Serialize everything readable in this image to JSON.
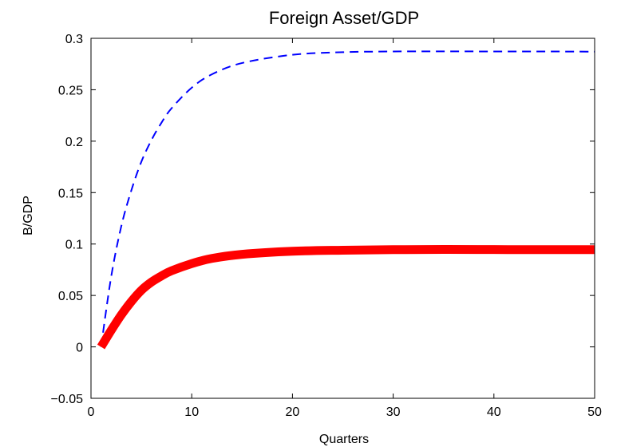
{
  "chart_data": {
    "type": "line",
    "title": "Foreign Asset/GDP",
    "xlabel": "Quarters",
    "ylabel": "B/GDP",
    "xlim": [
      0,
      50
    ],
    "ylim": [
      -0.05,
      0.3
    ],
    "xticks": [
      "0",
      "10",
      "20",
      "30",
      "40",
      "50"
    ],
    "yticks": [
      "−0.05",
      "0",
      "0.05",
      "0.1",
      "0.15",
      "0.2",
      "0.25",
      "0.3"
    ],
    "grid": false,
    "legend": "none",
    "series": [
      {
        "style": "dashed",
        "color": "#0000ff",
        "x": [
          1,
          2,
          3,
          4,
          5,
          6,
          7,
          8,
          10,
          12,
          15,
          20,
          25,
          30,
          35,
          40,
          45,
          50
        ],
        "y": [
          0.0,
          0.068,
          0.117,
          0.152,
          0.18,
          0.201,
          0.218,
          0.232,
          0.252,
          0.265,
          0.276,
          0.284,
          0.2865,
          0.2872,
          0.2873,
          0.2872,
          0.2872,
          0.287
        ]
      },
      {
        "style": "solid-thick",
        "color": "#ff0000",
        "x": [
          1,
          2,
          3,
          4,
          5,
          6,
          7,
          8,
          10,
          12,
          15,
          20,
          25,
          30,
          35,
          40,
          45,
          50
        ],
        "y": [
          0.0,
          0.016,
          0.031,
          0.044,
          0.055,
          0.063,
          0.069,
          0.074,
          0.081,
          0.086,
          0.09,
          0.093,
          0.094,
          0.0945,
          0.0947,
          0.0946,
          0.0945,
          0.0945
        ]
      }
    ]
  }
}
